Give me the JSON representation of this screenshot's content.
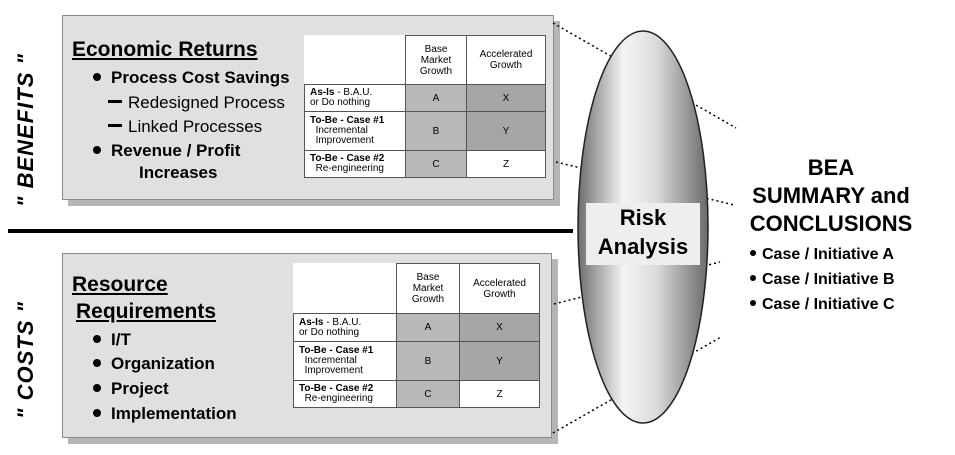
{
  "labels": {
    "benefits": "\" BENEFITS \"",
    "costs": "\" COSTS \""
  },
  "benefits_panel": {
    "heading": "Economic Returns",
    "items": [
      {
        "text": "Process Cost Savings",
        "style": "bullet"
      },
      {
        "text": "Redesigned Process",
        "style": "dash"
      },
      {
        "text": "Linked Processes",
        "style": "dash"
      },
      {
        "text": "Revenue / Profit",
        "style": "bullet"
      },
      {
        "text": "Increases",
        "style": "continuation"
      }
    ]
  },
  "costs_panel": {
    "heading_line1": "Resource",
    "heading_line2": "Requirements",
    "items": [
      "I/T",
      "Organization",
      "Project",
      "Implementation"
    ]
  },
  "matrix": {
    "col_headers": [
      {
        "line1": "Base",
        "line2": "Market",
        "line3": "Growth"
      },
      {
        "line1": "Accelerated",
        "line2": "Growth"
      }
    ],
    "rows": [
      {
        "label_bold": "As-Is",
        "label_rest": " - B.A.U.",
        "label_line2": "or  Do nothing",
        "label_line3": "",
        "cells": [
          "A",
          "X"
        ]
      },
      {
        "label_bold": "To-Be - Case #1",
        "label_rest": "",
        "label_line2": "Incremental",
        "label_line3": "Improvement",
        "cells": [
          "B",
          "Y"
        ]
      },
      {
        "label_bold": "To-Be - Case #2",
        "label_rest": "",
        "label_line2": "Re-engineering",
        "label_line3": "",
        "cells": [
          "C",
          "Z"
        ]
      }
    ]
  },
  "risk": {
    "line1": "Risk",
    "line2": "Analysis"
  },
  "summary": {
    "title_line1": "BEA",
    "title_line2": "SUMMARY and",
    "title_line3": "CONCLUSIONS",
    "items": [
      "Case / Initiative A",
      "Case / Initiative B",
      "Case / Initiative C"
    ]
  }
}
